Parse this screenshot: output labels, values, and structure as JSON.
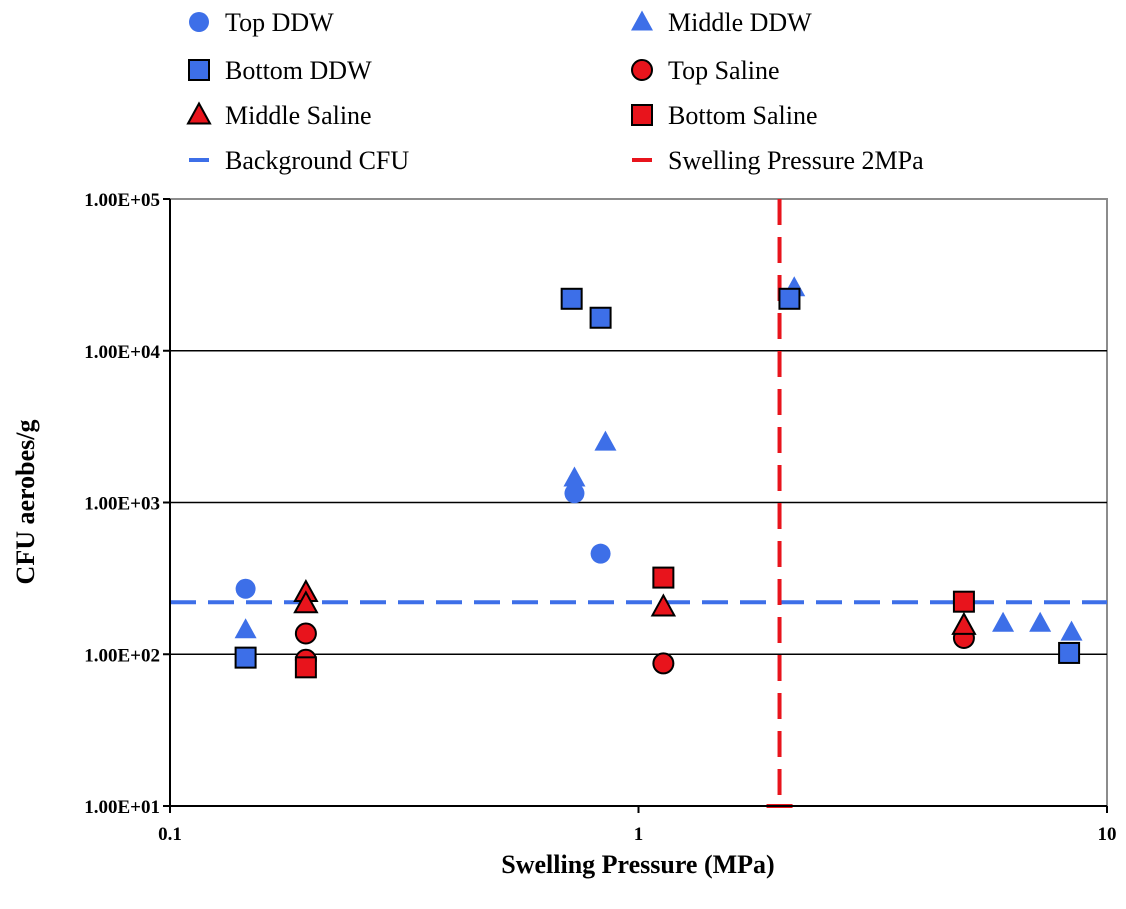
{
  "chart_data": {
    "type": "scatter",
    "title": "",
    "xlabel": "Swelling Pressure (MPa)",
    "ylabel": "CFU aerobes/g",
    "xscale": "log",
    "yscale": "log",
    "xlim": [
      0.1,
      10
    ],
    "ylim": [
      10,
      100000
    ],
    "x_tick_labels": [
      "0.1",
      "1",
      "10"
    ],
    "y_tick_labels": [
      "1.00E+01",
      "1.00E+02",
      "1.00E+03",
      "1.00E+04",
      "1.00E+05"
    ],
    "grid": "horizontal major gridlines",
    "legend_position": "top, outside plot area, two columns",
    "series": [
      {
        "name": "Top DDW",
        "marker": "circle",
        "color": "#3D6FE8",
        "outline": "none",
        "points": [
          [
            0.145,
            270
          ],
          [
            0.73,
            1150
          ],
          [
            0.83,
            460
          ]
        ]
      },
      {
        "name": "Middle DDW",
        "marker": "triangle",
        "color": "#3D6FE8",
        "outline": "none",
        "points": [
          [
            0.145,
            145
          ],
          [
            0.73,
            1450
          ],
          [
            0.85,
            2500
          ],
          [
            2.15,
            26000
          ],
          [
            6.0,
            160
          ],
          [
            7.2,
            160
          ],
          [
            8.4,
            140
          ]
        ]
      },
      {
        "name": "Bottom DDW",
        "marker": "square",
        "color": "#3D6FE8",
        "outline": "#000000",
        "points": [
          [
            0.145,
            95
          ],
          [
            0.72,
            22000
          ],
          [
            0.83,
            16500
          ],
          [
            2.1,
            22000
          ],
          [
            8.3,
            102
          ]
        ]
      },
      {
        "name": "Top Saline",
        "marker": "circle",
        "color": "#E8141C",
        "outline": "#000000",
        "points": [
          [
            0.195,
            137
          ],
          [
            0.195,
            92
          ],
          [
            1.13,
            87
          ],
          [
            4.95,
            128
          ]
        ]
      },
      {
        "name": "Middle Saline",
        "marker": "triangle",
        "color": "#E8141C",
        "outline": "#000000",
        "points": [
          [
            0.195,
            255
          ],
          [
            0.195,
            215
          ],
          [
            1.13,
            205
          ],
          [
            4.95,
            155
          ]
        ]
      },
      {
        "name": "Bottom Saline",
        "marker": "square",
        "color": "#E8141C",
        "outline": "#000000",
        "points": [
          [
            0.195,
            82
          ],
          [
            1.13,
            320
          ],
          [
            4.95,
            222
          ]
        ]
      }
    ],
    "reference_lines": [
      {
        "name": "Background CFU",
        "orientation": "horizontal",
        "y": 220,
        "color": "#3D6FE8",
        "style": "dashed"
      },
      {
        "name": "Swelling Pressure 2MPa",
        "orientation": "vertical",
        "x": 2,
        "color": "#E8141C",
        "style": "dashed"
      }
    ],
    "legend_entries": [
      "Top DDW",
      "Middle DDW",
      "Bottom DDW",
      "Top Saline",
      "Middle Saline",
      "Bottom Saline",
      "Background CFU",
      "Swelling Pressure 2MPa"
    ]
  }
}
